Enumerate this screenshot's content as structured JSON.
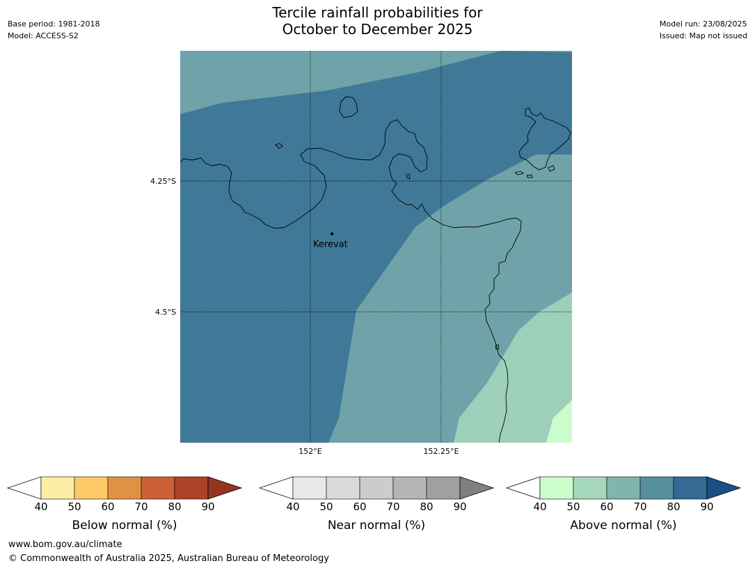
{
  "title_line1": "Tercile rainfall probabilities for",
  "title_line2": "October to December 2025",
  "meta_left": {
    "base_period": "Base period: 1981-2018",
    "model": "Model: ACCESS-S2"
  },
  "meta_right": {
    "model_run": "Model run: 23/08/2025",
    "issued": "Issued: Map not issued"
  },
  "map": {
    "lat_labels": [
      "4.25°S",
      "4.5°S"
    ],
    "lon_labels": [
      "152°E",
      "152.25°E"
    ],
    "place": "Kerevat"
  },
  "colorbars": [
    {
      "label": "Below normal (%)",
      "ticks": [
        "40",
        "50",
        "60",
        "70",
        "80",
        "90"
      ],
      "colors": [
        "#ffffff",
        "#feeda5",
        "#fdc966",
        "#e09244",
        "#cb6134",
        "#ad4326",
        "#973322"
      ]
    },
    {
      "label": "Near normal (%)",
      "ticks": [
        "40",
        "50",
        "60",
        "70",
        "80",
        "90"
      ],
      "colors": [
        "#ffffff",
        "#e8e8e8",
        "#dadada",
        "#cccccc",
        "#b5b5b5",
        "#a0a0a0",
        "#808080"
      ]
    },
    {
      "label": "Above normal (%)",
      "ticks": [
        "40",
        "50",
        "60",
        "70",
        "80",
        "90"
      ],
      "colors": [
        "#ffffff",
        "#ccfbcc",
        "#a5d8bb",
        "#81b4ac",
        "#57909c",
        "#346a94",
        "#1b4f86"
      ]
    }
  ],
  "footer": {
    "url": "www.bom.gov.au/climate",
    "copyright": "© Commonwealth of Australia 2025, Australian Bureau of Meteorology"
  }
}
